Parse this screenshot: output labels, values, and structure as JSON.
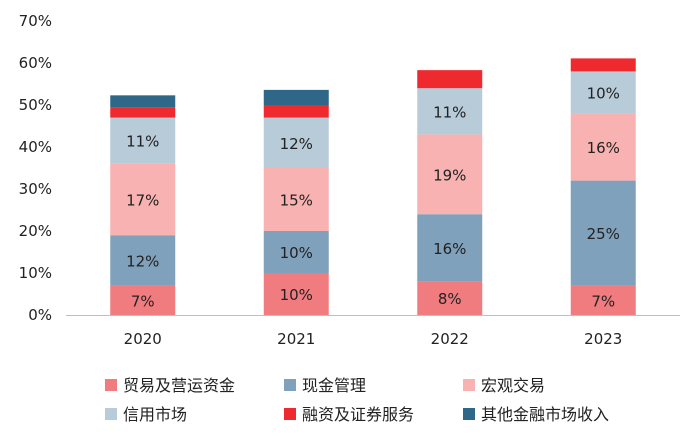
{
  "chart_data": {
    "type": "bar",
    "stacked": true,
    "title": "",
    "xlabel": "",
    "ylabel": "",
    "ylim": [
      0,
      70
    ],
    "yticks": [
      "0%",
      "10%",
      "20%",
      "30%",
      "40%",
      "50%",
      "60%",
      "70%"
    ],
    "categories": [
      "2020",
      "2021",
      "2022",
      "2023"
    ],
    "grid": false,
    "legend_position": "bottom",
    "series": [
      {
        "name": "贸易及营运资金",
        "color": "#F07C80",
        "values": [
          7,
          10,
          8,
          7
        ],
        "labels": [
          "7%",
          "10%",
          "8%",
          "7%"
        ]
      },
      {
        "name": "现金管理",
        "color": "#7FA1BB",
        "values": [
          12,
          10,
          16,
          25
        ],
        "labels": [
          "12%",
          "10%",
          "16%",
          "25%"
        ]
      },
      {
        "name": "宏观交易",
        "color": "#F7B2B1",
        "values": [
          17,
          15,
          19,
          16
        ],
        "labels": [
          "17%",
          "15%",
          "19%",
          "16%"
        ]
      },
      {
        "name": "信用市场",
        "color": "#B7CBD9",
        "values": [
          11,
          12,
          11,
          10
        ],
        "labels": [
          "11%",
          "12%",
          "11%",
          "10%"
        ]
      },
      {
        "name": "融资及证券服务",
        "color": "#EE2A2F",
        "values": [
          2.5,
          3,
          4.3,
          3.1
        ],
        "labels": [
          "",
          "",
          "",
          ""
        ]
      },
      {
        "name": "其他金融市场收入",
        "color": "#2E6788",
        "values": [
          2.8,
          3.6,
          0,
          0
        ],
        "labels": [
          "",
          "",
          "",
          ""
        ]
      }
    ]
  }
}
